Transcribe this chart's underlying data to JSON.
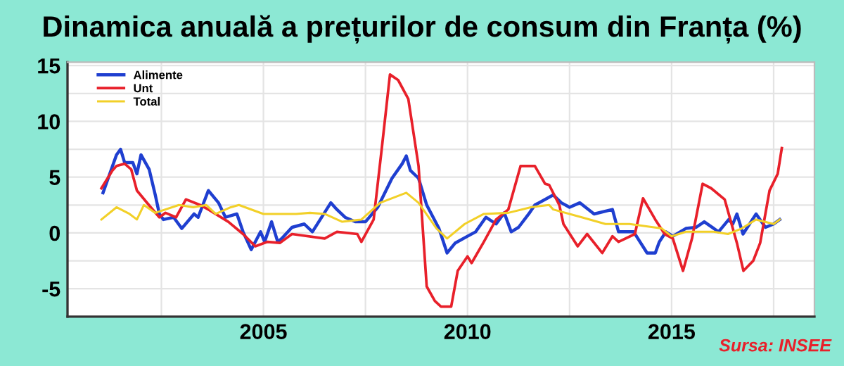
{
  "chart_data": {
    "type": "line",
    "title": "Dinamica anuală a prețurilor de consum din Franța (%)",
    "annotations": [
      "Sursa: INSEE"
    ],
    "xlim": [
      2000.2,
      2018.5
    ],
    "xticks": [
      {
        "value": 2002.5,
        "label": null
      },
      2005,
      {
        "value": 2007.5,
        "label": null
      },
      2010,
      {
        "value": 2012.5,
        "label": null
      },
      2015,
      {
        "value": 2017.5,
        "label": null
      }
    ],
    "ylim": [
      -7.5,
      15.3
    ],
    "yticks": [
      -5,
      {
        "value": -2.5,
        "label": null
      },
      0,
      {
        "value": 2.5,
        "label": null
      },
      5,
      {
        "value": 7.5,
        "label": null
      },
      10,
      {
        "value": 12.5,
        "label": null
      },
      15
    ],
    "grid": true,
    "legend": "top left",
    "line_style": "solid",
    "marker": "none",
    "series": [
      {
        "name": "Alimente",
        "color": "#1f3fd0",
        "x": [
          2001.07,
          2001.4,
          2001.5,
          2001.6,
          2001.8,
          2001.9,
          2002.0,
          2002.2,
          2002.35,
          2002.45,
          2002.55,
          2002.8,
          2003.0,
          2003.3,
          2003.4,
          2003.65,
          2003.9,
          2004.07,
          2004.35,
          2004.5,
          2004.7,
          2004.93,
          2005.03,
          2005.2,
          2005.35,
          2005.45,
          2005.7,
          2006.0,
          2006.2,
          2006.65,
          2006.8,
          2007.0,
          2007.25,
          2007.5,
          2007.8,
          2008.15,
          2008.4,
          2008.5,
          2008.6,
          2008.8,
          2009.0,
          2009.3,
          2009.5,
          2009.7,
          2010.0,
          2010.2,
          2010.45,
          2010.7,
          2010.9,
          2011.07,
          2011.25,
          2011.5,
          2011.65,
          2012.1,
          2012.3,
          2012.5,
          2012.75,
          2013.1,
          2013.55,
          2013.7,
          2014.07,
          2014.4,
          2014.6,
          2014.7,
          2014.86,
          2015.03,
          2015.35,
          2015.6,
          2015.8,
          2016.15,
          2016.4,
          2016.5,
          2016.6,
          2016.75,
          2017.07,
          2017.3,
          2017.5,
          2017.65
        ],
        "values": [
          3.6,
          7.0,
          7.5,
          6.3,
          6.3,
          5.3,
          7.0,
          5.7,
          3.4,
          1.7,
          1.2,
          1.4,
          0.4,
          1.7,
          1.4,
          3.8,
          2.7,
          1.4,
          1.7,
          0.1,
          -1.5,
          0.1,
          -0.8,
          1.0,
          -0.8,
          -0.5,
          0.5,
          0.8,
          0.1,
          2.7,
          2.1,
          1.4,
          1.0,
          1.0,
          2.3,
          4.9,
          6.2,
          6.9,
          5.6,
          4.9,
          2.5,
          0.4,
          -1.8,
          -0.9,
          -0.3,
          0.1,
          1.4,
          0.8,
          1.8,
          0.1,
          0.5,
          1.7,
          2.5,
          3.4,
          2.7,
          2.3,
          2.7,
          1.7,
          2.1,
          0.1,
          0.1,
          -1.8,
          -1.8,
          -0.8,
          0.1,
          -0.3,
          0.4,
          0.5,
          1.0,
          0.1,
          1.2,
          0.8,
          1.7,
          -0.1,
          1.7,
          0.5,
          0.8,
          1.2
        ]
      },
      {
        "name": "Unt",
        "color": "#e8202a",
        "x": [
          2001.03,
          2001.3,
          2001.4,
          2001.6,
          2001.76,
          2001.9,
          2002.24,
          2002.45,
          2002.6,
          2002.86,
          2003.1,
          2003.45,
          2003.65,
          2004.14,
          2004.5,
          2004.8,
          2005.1,
          2005.4,
          2005.7,
          2006.5,
          2006.8,
          2007.3,
          2007.4,
          2007.7,
          2007.9,
          2008.1,
          2008.3,
          2008.55,
          2008.8,
          2009.0,
          2009.2,
          2009.35,
          2009.6,
          2009.76,
          2010.0,
          2010.1,
          2010.4,
          2010.7,
          2011.0,
          2011.3,
          2011.65,
          2011.9,
          2012.0,
          2012.25,
          2012.35,
          2012.7,
          2012.93,
          2013.3,
          2013.55,
          2013.7,
          2014.1,
          2014.3,
          2014.6,
          2014.83,
          2015.03,
          2015.28,
          2015.5,
          2015.76,
          2015.97,
          2016.3,
          2016.6,
          2016.76,
          2017.0,
          2017.17,
          2017.4,
          2017.6,
          2017.7
        ],
        "values": [
          4.0,
          5.6,
          6.0,
          6.2,
          5.7,
          3.8,
          2.3,
          1.4,
          1.8,
          1.4,
          3.0,
          2.5,
          2.1,
          1.0,
          -0.1,
          -1.2,
          -0.8,
          -0.9,
          -0.1,
          -0.5,
          0.1,
          -0.1,
          -0.8,
          1.2,
          7.6,
          14.2,
          13.7,
          12.0,
          6.0,
          -4.8,
          -6.1,
          -6.6,
          -6.6,
          -3.4,
          -2.1,
          -2.7,
          -0.8,
          1.2,
          2.1,
          6.0,
          6.0,
          4.4,
          4.3,
          2.5,
          0.8,
          -1.2,
          -0.1,
          -1.8,
          -0.3,
          -0.8,
          -0.1,
          3.1,
          1.2,
          -0.1,
          -0.5,
          -3.4,
          -0.5,
          4.4,
          4.0,
          3.0,
          -0.9,
          -3.4,
          -2.5,
          -0.9,
          3.8,
          5.3,
          7.6
        ]
      },
      {
        "name": "Total",
        "color": "#f2d028",
        "x": [
          2001.03,
          2001.4,
          2001.72,
          2001.9,
          2002.07,
          2002.35,
          2002.93,
          2003.28,
          2003.6,
          2003.83,
          2004.2,
          2004.4,
          2005.0,
          2005.35,
          2005.8,
          2006.14,
          2006.5,
          2006.93,
          2007.4,
          2007.86,
          2008.5,
          2008.8,
          2009.24,
          2009.5,
          2009.93,
          2010.4,
          2011.0,
          2011.55,
          2012.0,
          2012.1,
          2012.8,
          2013.38,
          2013.97,
          2014.76,
          2015.0,
          2015.35,
          2016.03,
          2016.38,
          2016.72,
          2017.07,
          2017.5,
          2017.65
        ],
        "values": [
          1.2,
          2.3,
          1.7,
          1.2,
          2.5,
          1.8,
          2.5,
          2.3,
          2.5,
          1.7,
          2.3,
          2.5,
          1.7,
          1.7,
          1.7,
          1.8,
          1.7,
          1.0,
          1.2,
          2.7,
          3.6,
          2.7,
          0.4,
          -0.5,
          0.8,
          1.7,
          1.8,
          2.3,
          2.5,
          2.1,
          1.4,
          0.8,
          0.8,
          0.4,
          -0.3,
          0.1,
          0.1,
          -0.1,
          0.4,
          1.2,
          0.8,
          1.2
        ]
      }
    ]
  }
}
